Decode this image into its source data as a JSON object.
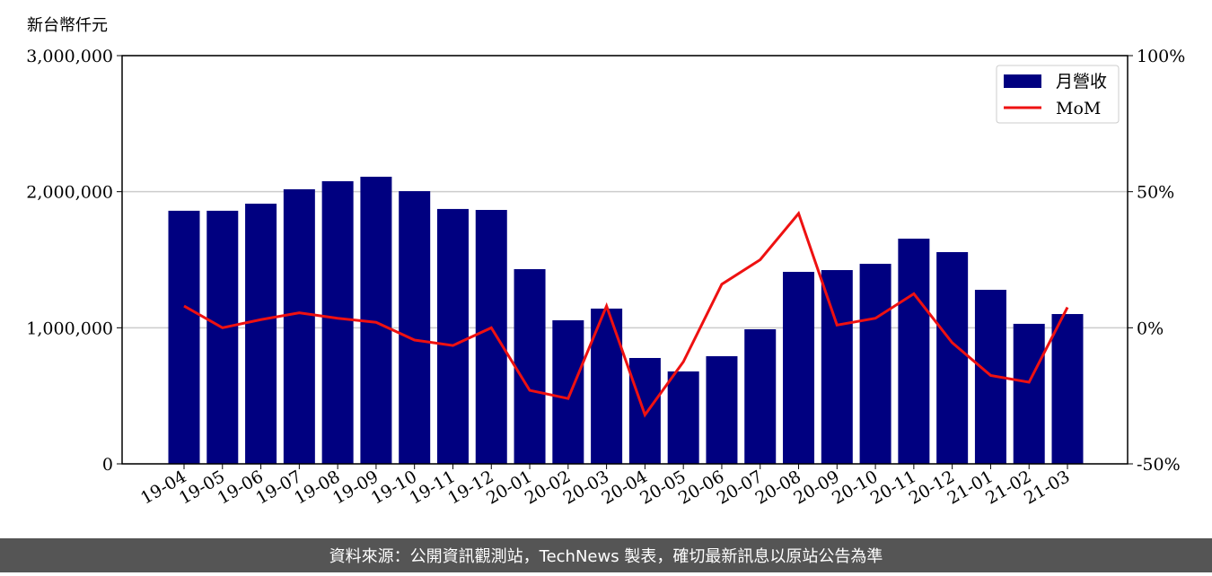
{
  "chart_data": {
    "type": "bar",
    "ylabel": "新台幣仟元",
    "footer": "資料來源：公開資訊觀測站，TechNews 製表，確切最新訊息以原站公告為準",
    "categories": [
      "19-04",
      "19-05",
      "19-06",
      "19-07",
      "19-08",
      "19-09",
      "19-10",
      "19-11",
      "19-12",
      "20-01",
      "20-02",
      "20-03",
      "20-04",
      "20-05",
      "20-06",
      "20-07",
      "20-08",
      "20-09",
      "20-10",
      "20-11",
      "20-12",
      "21-01",
      "21-02",
      "21-03"
    ],
    "series": [
      {
        "name": "月營收",
        "type": "bar",
        "color": "#000080",
        "values": [
          1860000,
          1860000,
          1912000,
          2018000,
          2077000,
          2110000,
          2004000,
          1873000,
          1866000,
          1431000,
          1055000,
          1141000,
          778000,
          679000,
          791000,
          989000,
          1411000,
          1424000,
          1470000,
          1655000,
          1556000,
          1279000,
          1029000,
          1101000
        ]
      },
      {
        "name": "MoM",
        "type": "line",
        "axis": "y2",
        "color": "#ee1111",
        "values": [
          8,
          0,
          3,
          5.5,
          3.5,
          2,
          -4.5,
          -6.5,
          0,
          -23,
          -26,
          8,
          -32,
          -12.5,
          16,
          25,
          42,
          1,
          3.5,
          12.5,
          -5.5,
          -17.5,
          -20,
          7.5
        ]
      }
    ],
    "ylim": [
      0,
      3000000
    ],
    "yticks": [
      {
        "value": 0,
        "label": "0"
      },
      {
        "value": 1000000,
        "label": "1,000,000"
      },
      {
        "value": 2000000,
        "label": "2,000,000"
      },
      {
        "value": 3000000,
        "label": "3,000,000"
      }
    ],
    "y2lim": [
      -50,
      100
    ],
    "y2ticks": [
      {
        "value": -50,
        "label": "-50%"
      },
      {
        "value": 0,
        "label": "0%"
      },
      {
        "value": 50,
        "label": "50%"
      },
      {
        "value": 100,
        "label": "100%"
      }
    ],
    "grid": true,
    "legend": "upper right"
  }
}
